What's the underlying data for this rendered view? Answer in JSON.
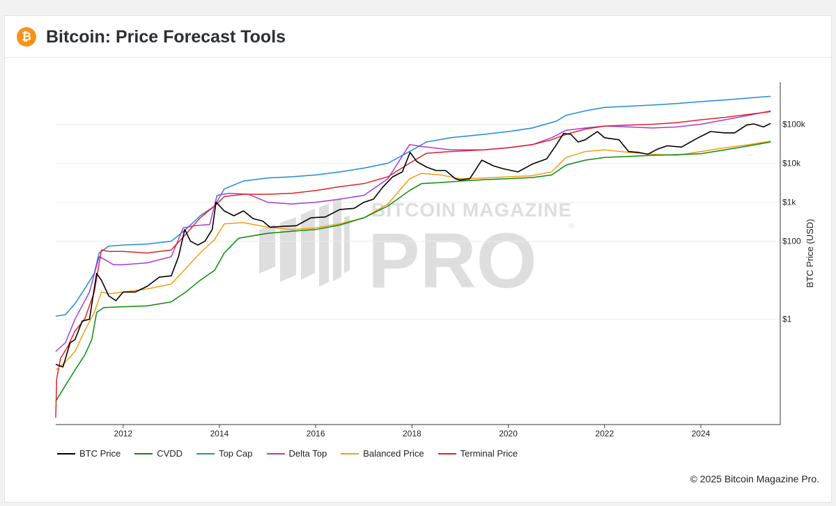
{
  "header": {
    "title": "Bitcoin: Price Forecast Tools",
    "logo_glyph": "₿",
    "logo_color": "#f7931a"
  },
  "watermark": {
    "line1": "BITCOIN MAGAZINE",
    "line2": "PRO",
    "mark": "®"
  },
  "copyright": "© 2025 Bitcoin Magazine Pro.",
  "chart_data": {
    "type": "line",
    "title": "Bitcoin: Price Forecast Tools",
    "xlabel": "",
    "ylabel": "BTC Price (USD)",
    "y_scale": "log",
    "xlim": [
      2010.6,
      2025.65
    ],
    "ylim": [
      0.002,
      1200000
    ],
    "x_ticks": [
      2012,
      2014,
      2016,
      2018,
      2020,
      2022,
      2024
    ],
    "x_tick_labels": [
      "2012",
      "2014",
      "2016",
      "2018",
      "2020",
      "2022",
      "2024"
    ],
    "y_ticks": [
      1,
      100,
      1000,
      10000,
      100000
    ],
    "y_tick_labels": [
      "$1",
      "$100",
      "$1k",
      "$10k",
      "$100k"
    ],
    "grid": true,
    "legend_position": "bottom-left",
    "series": [
      {
        "name": "BTC Price",
        "color": "#000000",
        "x": [
          2010.6,
          2010.75,
          2010.9,
          2011.0,
          2011.15,
          2011.3,
          2011.45,
          2011.55,
          2011.7,
          2011.85,
          2012.0,
          2012.25,
          2012.5,
          2012.75,
          2013.0,
          2013.15,
          2013.28,
          2013.4,
          2013.55,
          2013.7,
          2013.85,
          2013.93,
          2014.1,
          2014.3,
          2014.5,
          2014.7,
          2014.9,
          2015.05,
          2015.3,
          2015.6,
          2015.9,
          2016.2,
          2016.5,
          2016.8,
          2017.0,
          2017.2,
          2017.4,
          2017.6,
          2017.8,
          2017.96,
          2018.1,
          2018.3,
          2018.5,
          2018.7,
          2018.9,
          2019.0,
          2019.2,
          2019.45,
          2019.7,
          2019.9,
          2020.2,
          2020.5,
          2020.8,
          2021.0,
          2021.15,
          2021.3,
          2021.45,
          2021.6,
          2021.85,
          2022.0,
          2022.3,
          2022.5,
          2022.7,
          2022.9,
          2023.1,
          2023.3,
          2023.6,
          2023.9,
          2024.2,
          2024.5,
          2024.7,
          2024.95,
          2025.1,
          2025.3,
          2025.45
        ],
        "values": [
          0.07,
          0.06,
          0.25,
          0.3,
          0.9,
          1.0,
          15,
          10,
          4,
          3,
          5,
          5,
          7,
          12,
          13,
          40,
          200,
          100,
          80,
          100,
          200,
          1000,
          600,
          450,
          600,
          380,
          330,
          230,
          240,
          250,
          400,
          420,
          650,
          700,
          1000,
          1200,
          2500,
          4500,
          6000,
          19000,
          11000,
          8000,
          6500,
          6500,
          4000,
          3700,
          4000,
          12000,
          8500,
          7200,
          6000,
          9500,
          13000,
          30000,
          58000,
          55000,
          35000,
          40000,
          65000,
          45000,
          40000,
          20000,
          19000,
          17000,
          23000,
          28000,
          26000,
          42000,
          65000,
          60000,
          60000,
          95000,
          102000,
          85000,
          105000
        ]
      },
      {
        "name": "CVDD",
        "color": "#0a8a0a",
        "x": [
          2010.6,
          2010.8,
          2011.0,
          2011.2,
          2011.35,
          2011.45,
          2011.6,
          2012.0,
          2012.5,
          2013.0,
          2013.3,
          2013.6,
          2013.9,
          2014.1,
          2014.4,
          2015.0,
          2015.5,
          2016.0,
          2016.5,
          2017.0,
          2017.5,
          2017.95,
          2018.2,
          2018.6,
          2019.0,
          2019.5,
          2020.0,
          2020.5,
          2020.9,
          2021.2,
          2021.6,
          2022.0,
          2022.5,
          2023.0,
          2023.5,
          2024.0,
          2024.5,
          2025.0,
          2025.45
        ],
        "values": [
          0.008,
          0.02,
          0.05,
          0.12,
          0.3,
          1.5,
          2.0,
          2.1,
          2.2,
          2.8,
          5,
          10,
          18,
          50,
          120,
          160,
          180,
          200,
          260,
          400,
          800,
          2000,
          3000,
          3200,
          3500,
          3800,
          4000,
          4300,
          5000,
          9000,
          12000,
          14000,
          15000,
          16000,
          16500,
          17500,
          22000,
          28000,
          35000
        ]
      },
      {
        "name": "Top Cap",
        "color": "#1f8ad6",
        "x": [
          2010.6,
          2010.8,
          2011.0,
          2011.2,
          2011.4,
          2011.5,
          2011.7,
          2012.0,
          2012.5,
          2013.0,
          2013.3,
          2013.6,
          2013.9,
          2014.1,
          2014.5,
          2015.0,
          2015.5,
          2016.0,
          2016.5,
          2017.0,
          2017.5,
          2017.95,
          2018.3,
          2018.8,
          2019.5,
          2020.0,
          2020.5,
          2021.0,
          2021.2,
          2021.6,
          2022.0,
          2022.5,
          2023.0,
          2023.5,
          2024.0,
          2024.5,
          2025.0,
          2025.45
        ],
        "values": [
          1.2,
          1.3,
          2.5,
          6,
          15,
          50,
          75,
          80,
          85,
          100,
          200,
          450,
          800,
          2200,
          3500,
          4200,
          4500,
          5000,
          6000,
          7500,
          10000,
          20000,
          35000,
          45000,
          55000,
          65000,
          80000,
          120000,
          170000,
          220000,
          270000,
          290000,
          310000,
          340000,
          380000,
          420000,
          470000,
          520000
        ]
      },
      {
        "name": "Delta Top",
        "color": "#a73ad6",
        "x": [
          2010.6,
          2010.8,
          2011.0,
          2011.3,
          2011.5,
          2011.6,
          2011.8,
          2012.0,
          2012.5,
          2013.0,
          2013.25,
          2013.5,
          2013.8,
          2013.95,
          2014.2,
          2014.6,
          2015.0,
          2015.5,
          2016.0,
          2016.5,
          2017.0,
          2017.5,
          2017.95,
          2018.2,
          2018.8,
          2019.5,
          2020.0,
          2020.5,
          2020.9,
          2021.2,
          2021.6,
          2022.0,
          2022.5,
          2023.0,
          2023.5,
          2024.0,
          2024.5,
          2025.0,
          2025.45
        ],
        "values": [
          0.15,
          0.25,
          1.0,
          5,
          40,
          35,
          25,
          25,
          28,
          40,
          220,
          250,
          270,
          1500,
          1700,
          1600,
          1000,
          900,
          1000,
          1200,
          1500,
          4000,
          30000,
          27000,
          22000,
          22000,
          25000,
          30000,
          45000,
          70000,
          80000,
          90000,
          85000,
          80000,
          85000,
          100000,
          130000,
          170000,
          220000
        ]
      },
      {
        "name": "Balanced Price",
        "color": "#f39c12",
        "x": [
          2010.6,
          2010.8,
          2011.0,
          2011.2,
          2011.4,
          2011.55,
          2011.7,
          2012.0,
          2012.5,
          2013.0,
          2013.3,
          2013.6,
          2013.9,
          2014.1,
          2014.5,
          2015.0,
          2015.5,
          2016.0,
          2016.5,
          2017.0,
          2017.5,
          2017.95,
          2018.2,
          2018.6,
          2019.0,
          2019.5,
          2020.0,
          2020.5,
          2020.9,
          2021.2,
          2021.6,
          2022.0,
          2022.5,
          2023.0,
          2023.5,
          2024.0,
          2024.5,
          2025.0,
          2025.45
        ],
        "values": [
          0.05,
          0.08,
          0.15,
          0.5,
          1.5,
          5,
          4.5,
          5,
          6,
          8,
          20,
          50,
          110,
          280,
          300,
          230,
          200,
          220,
          280,
          400,
          900,
          4000,
          5500,
          5000,
          4000,
          4200,
          4500,
          4800,
          6000,
          14000,
          20000,
          22000,
          19000,
          17000,
          16000,
          20000,
          25000,
          30000,
          37000
        ]
      },
      {
        "name": "Terminal Price",
        "color": "#e0202a",
        "x": [
          2010.6,
          2010.62,
          2010.7,
          2010.85,
          2011.0,
          2011.2,
          2011.4,
          2011.55,
          2011.7,
          2012.0,
          2012.5,
          2013.0,
          2013.3,
          2013.6,
          2013.9,
          2014.1,
          2014.5,
          2015.0,
          2015.5,
          2016.0,
          2016.5,
          2017.0,
          2017.5,
          2017.95,
          2018.3,
          2018.8,
          2019.5,
          2020.0,
          2020.5,
          2020.9,
          2021.2,
          2021.6,
          2022.0,
          2022.5,
          2023.0,
          2023.5,
          2024.0,
          2024.5,
          2025.0,
          2025.45
        ],
        "values": [
          0.003,
          0.03,
          0.1,
          0.2,
          0.5,
          1,
          5,
          60,
          55,
          55,
          50,
          60,
          150,
          400,
          800,
          1400,
          1600,
          1600,
          1700,
          2000,
          2500,
          3000,
          4500,
          10000,
          18000,
          20000,
          22000,
          25000,
          30000,
          40000,
          55000,
          75000,
          90000,
          95000,
          100000,
          110000,
          130000,
          150000,
          180000,
          210000
        ]
      }
    ]
  }
}
